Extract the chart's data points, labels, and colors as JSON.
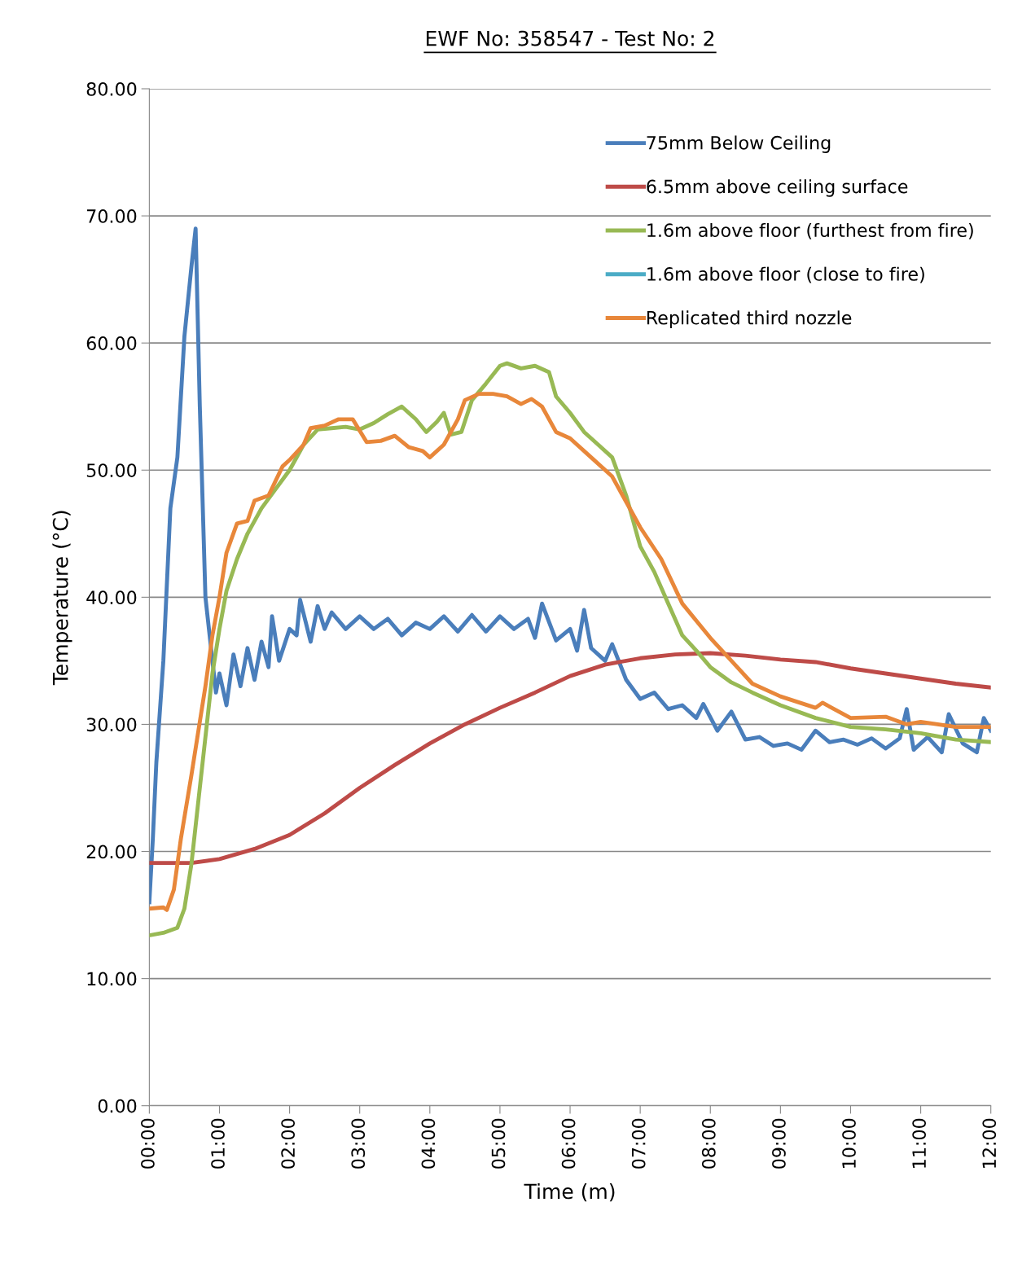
{
  "chart_data": {
    "type": "line",
    "title": "EWF No: 358547 - Test No: 2",
    "xlabel": "Time (m)",
    "ylabel": "Temperature (°C)",
    "xlim": [
      0,
      12
    ],
    "ylim": [
      0,
      80
    ],
    "xticks": [
      {
        "value": 0,
        "label": "00:00"
      },
      {
        "value": 1,
        "label": "01:00"
      },
      {
        "value": 2,
        "label": "02:00"
      },
      {
        "value": 3,
        "label": "03:00"
      },
      {
        "value": 4,
        "label": "04:00"
      },
      {
        "value": 5,
        "label": "05:00"
      },
      {
        "value": 6,
        "label": "06:00"
      },
      {
        "value": 7,
        "label": "07:00"
      },
      {
        "value": 8,
        "label": "08:00"
      },
      {
        "value": 9,
        "label": "09:00"
      },
      {
        "value": 10,
        "label": "10:00"
      },
      {
        "value": 11,
        "label": "11:00"
      },
      {
        "value": 12,
        "label": "12:00"
      }
    ],
    "yticks": [
      {
        "value": 0,
        "label": "0.00"
      },
      {
        "value": 10,
        "label": "10.00"
      },
      {
        "value": 20,
        "label": "20.00"
      },
      {
        "value": 30,
        "label": "30.00"
      },
      {
        "value": 40,
        "label": "40.00"
      },
      {
        "value": 50,
        "label": "50.00"
      },
      {
        "value": 60,
        "label": "60.00"
      },
      {
        "value": 70,
        "label": "70.00"
      },
      {
        "value": 80,
        "label": "80.00"
      }
    ],
    "grid": "y",
    "legend": "top right",
    "marker": "none",
    "line_style": "solid",
    "series": [
      {
        "name": "75mm Below Ceiling",
        "color": "#4a7ebb",
        "x": [
          0,
          0.05,
          0.1,
          0.2,
          0.3,
          0.4,
          0.5,
          0.6,
          0.66,
          0.72,
          0.8,
          0.9,
          0.95,
          1.0,
          1.1,
          1.2,
          1.3,
          1.4,
          1.5,
          1.6,
          1.7,
          1.75,
          1.85,
          2.0,
          2.1,
          2.15,
          2.3,
          2.4,
          2.5,
          2.6,
          2.8,
          3.0,
          3.2,
          3.4,
          3.6,
          3.8,
          4.0,
          4.2,
          4.4,
          4.6,
          4.8,
          5.0,
          5.2,
          5.4,
          5.5,
          5.6,
          5.8,
          6.0,
          6.1,
          6.2,
          6.3,
          6.5,
          6.6,
          6.8,
          7.0,
          7.2,
          7.4,
          7.6,
          7.8,
          7.9,
          8.1,
          8.3,
          8.5,
          8.7,
          8.9,
          9.1,
          9.3,
          9.5,
          9.7,
          9.9,
          10.1,
          10.3,
          10.5,
          10.7,
          10.8,
          10.9,
          11.1,
          11.3,
          11.4,
          11.6,
          11.8,
          11.9,
          12.0
        ],
        "values": [
          16,
          21,
          27,
          35,
          47,
          51,
          60.5,
          66,
          69,
          55,
          40,
          35,
          32.5,
          34,
          31.5,
          35.5,
          33,
          36,
          33.5,
          36.5,
          34.5,
          38.5,
          35,
          37.5,
          37,
          39.8,
          36.5,
          39.3,
          37.5,
          38.8,
          37.5,
          38.5,
          37.5,
          38.3,
          37,
          38,
          37.5,
          38.5,
          37.3,
          38.6,
          37.3,
          38.5,
          37.5,
          38.3,
          36.8,
          39.5,
          36.6,
          37.5,
          35.8,
          39,
          36,
          35,
          36.3,
          33.5,
          32,
          32.5,
          31.2,
          31.5,
          30.5,
          31.6,
          29.5,
          31,
          28.8,
          29,
          28.3,
          28.5,
          28,
          29.5,
          28.6,
          28.8,
          28.4,
          28.9,
          28.1,
          28.9,
          31.2,
          28,
          29,
          27.8,
          30.8,
          28.5,
          27.8,
          30.5,
          29.5
        ]
      },
      {
        "name": "6.5mm above ceiling surface",
        "color": "#be4b48",
        "x": [
          0,
          0.6,
          1.0,
          1.5,
          2.0,
          2.5,
          3.0,
          3.5,
          4.0,
          4.5,
          5.0,
          5.5,
          6.0,
          6.5,
          7.0,
          7.5,
          8.0,
          8.5,
          9.0,
          9.5,
          10.0,
          10.5,
          11.0,
          11.5,
          12.0
        ],
        "values": [
          19.1,
          19.1,
          19.4,
          20.2,
          21.3,
          23,
          25,
          26.8,
          28.5,
          30,
          31.3,
          32.5,
          33.8,
          34.7,
          35.2,
          35.5,
          35.6,
          35.4,
          35.1,
          34.9,
          34.4,
          34,
          33.6,
          33.2,
          32.9
        ]
      },
      {
        "name": "1.6m above floor (furthest from fire)",
        "color": "#98b954",
        "x": [
          0,
          0.2,
          0.4,
          0.5,
          0.6,
          0.7,
          0.8,
          0.9,
          1.0,
          1.1,
          1.25,
          1.4,
          1.6,
          1.8,
          2.0,
          2.2,
          2.4,
          2.6,
          2.8,
          3.0,
          3.2,
          3.4,
          3.6,
          3.8,
          3.95,
          4.1,
          4.2,
          4.3,
          4.45,
          4.6,
          4.8,
          5.0,
          5.1,
          5.3,
          5.5,
          5.7,
          5.8,
          6.0,
          6.2,
          6.4,
          6.6,
          6.8,
          7.0,
          7.2,
          7.4,
          7.6,
          7.8,
          8.0,
          8.3,
          8.6,
          9.0,
          9.5,
          10.0,
          10.5,
          11.0,
          11.5,
          12.0
        ],
        "values": [
          13.4,
          13.6,
          14,
          15.5,
          19,
          24,
          29,
          34,
          37.5,
          40.5,
          43,
          45,
          47,
          48.5,
          50,
          52,
          53.2,
          53.3,
          53.4,
          53.2,
          53.7,
          54.4,
          55,
          54,
          53,
          53.8,
          54.5,
          52.8,
          53,
          55.5,
          56.8,
          58.2,
          58.4,
          58,
          58.2,
          57.7,
          55.8,
          54.5,
          53,
          52,
          51,
          48,
          44,
          42,
          39.5,
          37,
          35.8,
          34.5,
          33.3,
          32.5,
          31.5,
          30.5,
          29.8,
          29.6,
          29.3,
          28.8,
          28.6
        ]
      },
      {
        "name": "1.6m above floor (close to fire)",
        "color": "#4bacc6"
      },
      {
        "name": "Replicated third nozzle",
        "color": "#e8873a",
        "x": [
          0,
          0.2,
          0.25,
          0.35,
          0.45,
          0.6,
          0.7,
          0.8,
          0.9,
          1.0,
          1.1,
          1.25,
          1.4,
          1.5,
          1.7,
          1.9,
          2.0,
          2.2,
          2.3,
          2.5,
          2.7,
          2.9,
          3.1,
          3.3,
          3.5,
          3.7,
          3.9,
          4.0,
          4.2,
          4.4,
          4.5,
          4.7,
          4.9,
          5.1,
          5.3,
          5.45,
          5.6,
          5.8,
          6.0,
          6.3,
          6.6,
          6.8,
          7.0,
          7.3,
          7.6,
          8.0,
          8.3,
          8.6,
          9.0,
          9.5,
          9.6,
          10.0,
          10.5,
          10.8,
          11.0,
          11.5,
          12.0
        ],
        "values": [
          15.5,
          15.6,
          15.4,
          17,
          21,
          26,
          29.5,
          33,
          37,
          40,
          43.5,
          45.8,
          46,
          47.6,
          48,
          50.3,
          50.8,
          52,
          53.3,
          53.5,
          54,
          54,
          52.2,
          52.3,
          52.7,
          51.8,
          51.5,
          51,
          52,
          54,
          55.5,
          56,
          56,
          55.8,
          55.2,
          55.6,
          55,
          53,
          52.5,
          51,
          49.5,
          47.5,
          45.5,
          43,
          39.5,
          36.8,
          35,
          33.2,
          32.2,
          31.3,
          31.7,
          30.5,
          30.6,
          30,
          30.2,
          29.8,
          29.8
        ]
      }
    ]
  }
}
